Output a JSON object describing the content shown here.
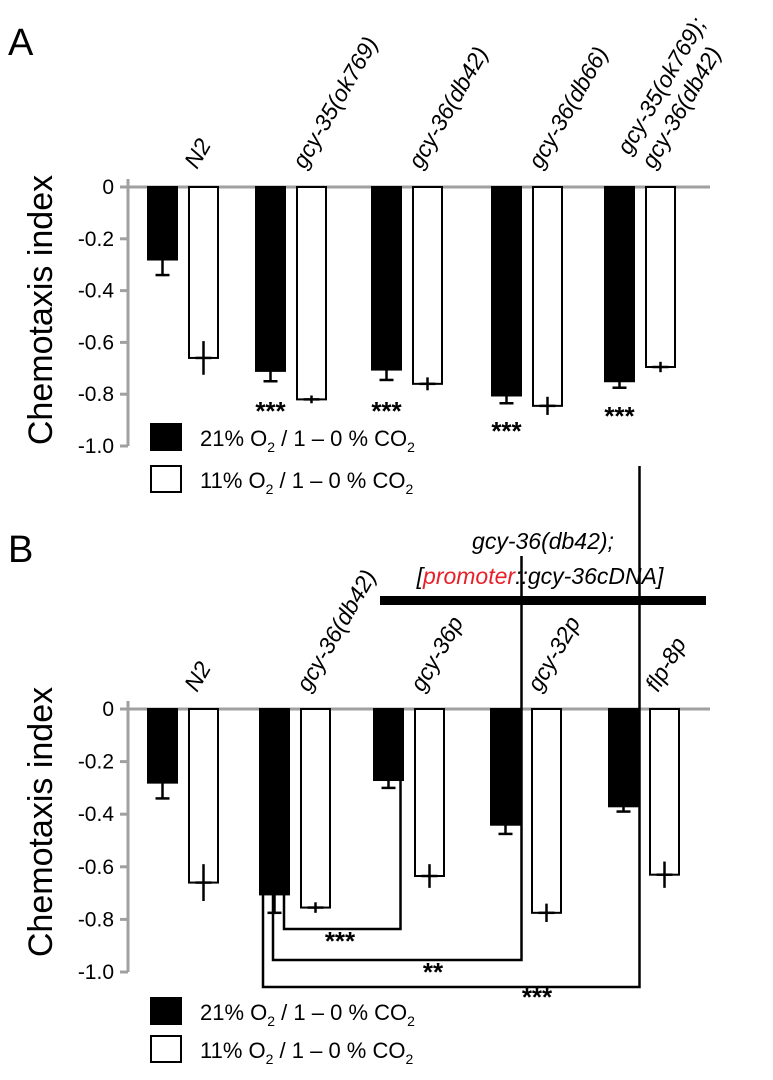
{
  "chart_data": [
    {
      "panel": "A",
      "type": "bar",
      "ylabel": "Chemotaxis index",
      "ylim": [
        -1.0,
        0
      ],
      "yticks": [
        "0",
        "-0.2",
        "-0.4",
        "-0.6",
        "-0.8",
        "-1.0"
      ],
      "categories": [
        [
          "N2"
        ],
        [
          "gcy-35(ok769)"
        ],
        [
          "gcy-36(db42)"
        ],
        [
          "gcy-36(db66)"
        ],
        [
          "gcy-35(ok769);",
          "gcy-36(db42)"
        ]
      ],
      "series": [
        {
          "name": "21% O2 / 1 – 0 % CO2",
          "fill": "#000000",
          "values": [
            -0.28,
            -0.71,
            -0.705,
            -0.805,
            -0.75
          ],
          "errors": [
            0.06,
            0.04,
            0.04,
            0.03,
            0.025
          ]
        },
        {
          "name": "11% O2 / 1 – 0 % CO2",
          "fill": "#ffffff",
          "values": [
            -0.66,
            -0.82,
            -0.76,
            -0.845,
            -0.695
          ],
          "errors": [
            0.065,
            0.015,
            0.025,
            0.035,
            0.02
          ]
        }
      ],
      "significance": [
        {
          "category": 1,
          "label": "***"
        },
        {
          "category": 2,
          "label": "***"
        },
        {
          "category": 3,
          "label": "***"
        },
        {
          "category": 4,
          "label": "***"
        }
      ],
      "legend": [
        {
          "pre": "21% O",
          "sub1": "2",
          "mid": " / 1 – 0 % CO",
          "sub2": "2"
        },
        {
          "pre": "11% O",
          "sub1": "2",
          "mid": " / 1 – 0 % CO",
          "sub2": "2"
        }
      ]
    },
    {
      "panel": "B",
      "type": "bar",
      "ylabel": "Chemotaxis index",
      "ylim": [
        -1.0,
        0
      ],
      "yticks": [
        "0",
        "-0.2",
        "-0.4",
        "-0.6",
        "-0.8",
        "-1.0"
      ],
      "categories": [
        [
          "N2"
        ],
        [
          "gcy-36(db42)"
        ],
        [
          "gcy-36p"
        ],
        [
          "gcy-32p"
        ],
        [
          "flp-8p"
        ]
      ],
      "series": [
        {
          "name": "21% O2 / 1 – 0 % CO2",
          "fill": "#000000",
          "values": [
            -0.28,
            -0.705,
            -0.27,
            -0.44,
            -0.37
          ],
          "errors": [
            0.06,
            0.07,
            0.03,
            0.035,
            0.02
          ]
        },
        {
          "name": "11% O2 / 1 – 0 % CO2",
          "fill": "#ffffff",
          "values": [
            -0.66,
            -0.755,
            -0.635,
            -0.775,
            -0.63
          ],
          "errors": [
            0.07,
            0.02,
            0.045,
            0.035,
            0.05
          ]
        }
      ],
      "group_label": {
        "line1": "gcy-36(db42);",
        "line2_pre": "[",
        "line2_red": "promoter",
        "line2_post": "::gcy-36cDNA]",
        "red_color": "#e8202a",
        "from_category": 2,
        "to_category": 4
      },
      "comparisons": [
        {
          "from": 1,
          "to": 2,
          "label": "***"
        },
        {
          "from": 1,
          "to": 3,
          "label": "**"
        },
        {
          "from": 1,
          "to": 4,
          "label": "***"
        }
      ],
      "legend": [
        {
          "pre": "21% O",
          "sub1": "2",
          "mid": " / 1 – 0 % CO",
          "sub2": "2"
        },
        {
          "pre": "11% O",
          "sub1": "2",
          "mid": " / 1 – 0 % CO",
          "sub2": "2"
        }
      ]
    }
  ],
  "colors": {
    "axis": "#a0a0a0",
    "bar_dark": "#000000",
    "bar_light": "#ffffff",
    "accent": "#e8202a"
  }
}
